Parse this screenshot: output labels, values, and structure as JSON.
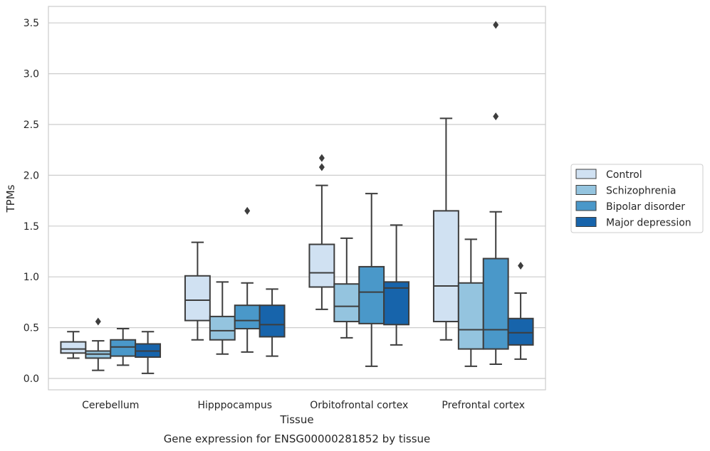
{
  "chart_data": {
    "type": "box",
    "xlabel": "Tissue",
    "ylabel": "TPMs",
    "caption": "Gene expression for ENSG00000281852 by tissue",
    "categories": [
      "Cerebellum",
      "Hipppocampus",
      "Orbitofrontal cortex",
      "Prefrontal cortex"
    ],
    "ylim": [
      -0.11,
      3.66
    ],
    "yticks": [
      "0.0",
      "0.5",
      "1.0",
      "1.5",
      "2.0",
      "2.5",
      "3.0",
      "3.5"
    ],
    "grid": "horizontal",
    "legend_position": "right",
    "series": [
      {
        "name": "Control",
        "color": "#d0e1f2",
        "boxes": [
          {
            "min": 0.2,
            "q1": 0.25,
            "median": 0.29,
            "q3": 0.36,
            "max": 0.46,
            "outliers": []
          },
          {
            "min": 0.38,
            "q1": 0.57,
            "median": 0.77,
            "q3": 1.01,
            "max": 1.34,
            "outliers": []
          },
          {
            "min": 0.68,
            "q1": 0.9,
            "median": 1.04,
            "q3": 1.32,
            "max": 1.9,
            "outliers": [
              2.08,
              2.17
            ]
          },
          {
            "min": 0.38,
            "q1": 0.56,
            "median": 0.91,
            "q3": 1.65,
            "max": 2.56,
            "outliers": []
          }
        ]
      },
      {
        "name": "Schizophrenia",
        "color": "#94c4df",
        "boxes": [
          {
            "min": 0.08,
            "q1": 0.2,
            "median": 0.24,
            "q3": 0.27,
            "max": 0.37,
            "outliers": [
              0.56
            ]
          },
          {
            "min": 0.24,
            "q1": 0.38,
            "median": 0.47,
            "q3": 0.61,
            "max": 0.95,
            "outliers": []
          },
          {
            "min": 0.4,
            "q1": 0.56,
            "median": 0.71,
            "q3": 0.93,
            "max": 1.38,
            "outliers": []
          },
          {
            "min": 0.12,
            "q1": 0.29,
            "median": 0.48,
            "q3": 0.94,
            "max": 1.37,
            "outliers": []
          }
        ]
      },
      {
        "name": "Bipolar disorder",
        "color": "#4a98c9",
        "boxes": [
          {
            "min": 0.13,
            "q1": 0.22,
            "median": 0.31,
            "q3": 0.38,
            "max": 0.49,
            "outliers": []
          },
          {
            "min": 0.26,
            "q1": 0.49,
            "median": 0.57,
            "q3": 0.72,
            "max": 0.94,
            "outliers": [
              1.65
            ]
          },
          {
            "min": 0.12,
            "q1": 0.54,
            "median": 0.85,
            "q3": 1.1,
            "max": 1.82,
            "outliers": []
          },
          {
            "min": 0.14,
            "q1": 0.29,
            "median": 0.48,
            "q3": 1.18,
            "max": 1.64,
            "outliers": [
              2.58,
              3.48
            ]
          }
        ]
      },
      {
        "name": "Major depression",
        "color": "#1764ab",
        "boxes": [
          {
            "min": 0.05,
            "q1": 0.21,
            "median": 0.27,
            "q3": 0.34,
            "max": 0.46,
            "outliers": []
          },
          {
            "min": 0.22,
            "q1": 0.41,
            "median": 0.53,
            "q3": 0.72,
            "max": 0.88,
            "outliers": []
          },
          {
            "min": 0.33,
            "q1": 0.53,
            "median": 0.89,
            "q3": 0.95,
            "max": 1.51,
            "outliers": []
          },
          {
            "min": 0.19,
            "q1": 0.33,
            "median": 0.45,
            "q3": 0.59,
            "max": 0.84,
            "outliers": [
              1.11
            ]
          }
        ]
      }
    ]
  }
}
